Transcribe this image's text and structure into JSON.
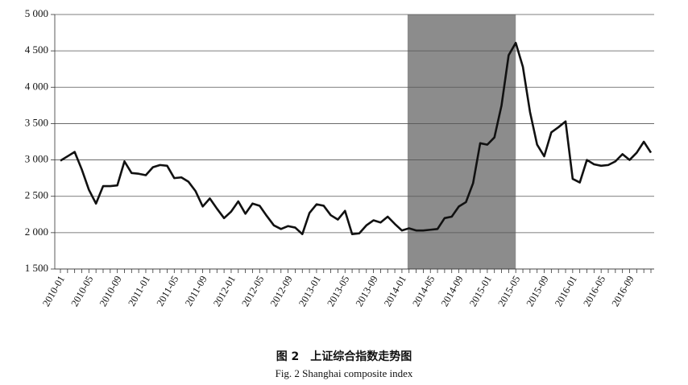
{
  "chart_data": {
    "type": "line",
    "caption_cn": "图 2　上证综合指数走势图",
    "caption_en": "Fig. 2 Shanghai composite index",
    "color": "#111111",
    "shade": {
      "from": "2014-01",
      "to": "2015-05",
      "color": "#8c8c8c"
    },
    "grid": true,
    "categories": [
      "2010-01",
      null,
      null,
      null,
      "2010-05",
      null,
      null,
      null,
      "2010-09",
      null,
      null,
      null,
      "2011-01",
      null,
      null,
      null,
      "2011-05",
      null,
      null,
      null,
      "2011-09",
      null,
      null,
      null,
      "2012-01",
      null,
      null,
      null,
      "2012-05",
      null,
      null,
      null,
      "2012-09",
      null,
      null,
      null,
      "2013-01",
      null,
      null,
      null,
      "2013-05",
      null,
      null,
      null,
      "2013-09",
      null,
      null,
      null,
      "2014-01",
      null,
      null,
      null,
      "2014-05",
      null,
      null,
      null,
      "2014-09",
      null,
      null,
      null,
      "2015-01",
      null,
      null,
      null,
      "2015-05",
      null,
      null,
      null,
      "2015-09",
      null,
      null,
      null,
      "2016-01",
      null,
      null,
      null,
      "2016-05",
      null,
      null,
      null,
      "2016-09",
      null,
      null,
      null
    ],
    "values": [
      2990,
      3050,
      3110,
      2870,
      2590,
      2400,
      2640,
      2640,
      2650,
      2980,
      2820,
      2810,
      2790,
      2900,
      2930,
      2920,
      2750,
      2760,
      2700,
      2570,
      2360,
      2470,
      2330,
      2200,
      2290,
      2430,
      2260,
      2400,
      2370,
      2230,
      2100,
      2050,
      2090,
      2070,
      1980,
      2270,
      2390,
      2370,
      2240,
      2180,
      2300,
      1980,
      1990,
      2100,
      2170,
      2140,
      2220,
      2120,
      2030,
      2060,
      2030,
      2030,
      2040,
      2050,
      2200,
      2220,
      2360,
      2420,
      2680,
      3230,
      3210,
      3310,
      3750,
      4440,
      4610,
      4280,
      3660,
      3210,
      3050,
      3380,
      3450,
      3530,
      2740,
      2690,
      3000,
      2940,
      2920,
      2930,
      2980,
      3080,
      3000,
      3100,
      3250,
      3100
    ],
    "ylim": [
      1500,
      5000
    ],
    "yticks": [
      {
        "value": 1500,
        "label": "1 500"
      },
      {
        "value": 2000,
        "label": "2 000"
      },
      {
        "value": 2500,
        "label": "2 500"
      },
      {
        "value": 3000,
        "label": "3 000"
      },
      {
        "value": 3500,
        "label": "3 500"
      },
      {
        "value": 4000,
        "label": "4 000"
      },
      {
        "value": 4500,
        "label": "4 500"
      },
      {
        "value": 5000,
        "label": "5 000"
      }
    ]
  }
}
